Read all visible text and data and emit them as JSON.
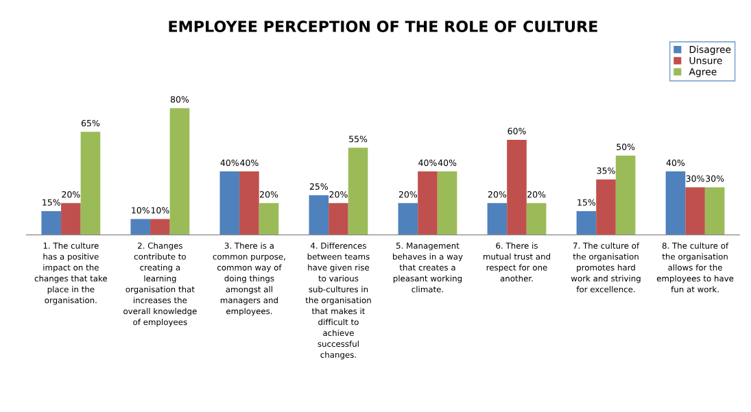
{
  "chart_data": {
    "type": "bar",
    "title": "EMPLOYEE PERCEPTION OF THE ROLE OF CULTURE",
    "categories": [
      "1. The culture has a positive impact on the changes that take place in the organisation.",
      "2. Changes contribute to creating a learning organisation that increases the overall knowledge of employees",
      "3. There is a common purpose, common way of doing things amongst all managers and employees.",
      "4. Differences between teams have given rise to various sub-cultures in the organisation that makes it difficult to achieve successful changes.",
      "5. Management behaves in a way that creates a pleasant working climate.",
      "6. There is mutual trust and respect for one another.",
      "7. The culture of the organisation promotes hard work and striving for excellence.",
      "8.  The culture of the organisation allows for the employees to have fun at work."
    ],
    "series": [
      {
        "name": "Disagree",
        "color": "#4f81bd",
        "values": [
          15,
          10,
          40,
          25,
          20,
          20,
          15,
          40
        ],
        "value_labels": [
          "15%",
          "10%",
          "40%",
          "25%",
          "20%",
          "20%",
          "15%",
          "40%"
        ]
      },
      {
        "name": "Unsure",
        "color": "#c0504d",
        "values": [
          20,
          10,
          40,
          20,
          40,
          60,
          35,
          30
        ],
        "value_labels": [
          "20%",
          "10%",
          "40%",
          "20%",
          "40%",
          "60%",
          "35%",
          "30%"
        ]
      },
      {
        "name": "Agree",
        "color": "#9bbb59",
        "values": [
          65,
          80,
          20,
          55,
          40,
          20,
          50,
          30
        ],
        "value_labels": [
          "65%",
          "80%",
          "20%",
          "55%",
          "40%",
          "20%",
          "50%",
          "30%"
        ]
      }
    ],
    "legend": "top right",
    "grid": false
  }
}
